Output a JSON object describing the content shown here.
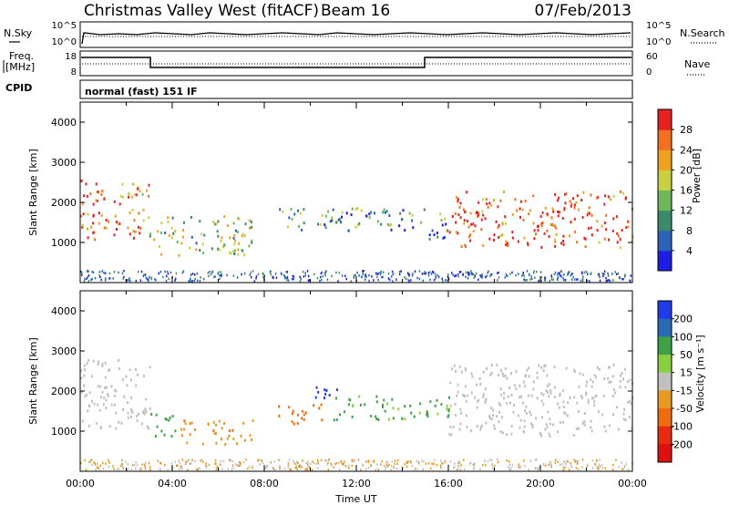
{
  "header": {
    "title": "Christmas Valley West (fitACF)",
    "beam": "Beam 16",
    "date": "07/Feb/2013"
  },
  "top_panels": {
    "nsky_label": "N.Sky",
    "nsky_ticks": [
      "10^5",
      "10^0"
    ],
    "nsearch_label": "N.Search",
    "nsearch_ticks": [
      "10^5",
      "10^0"
    ],
    "freq_label_1": "Freq.",
    "freq_label_2": "[MHz]",
    "freq_ticks": [
      "18",
      "8"
    ],
    "nave_label": "Nave",
    "nave_ticks": [
      "60",
      "0"
    ],
    "cpid_label": "CPID",
    "cpid_text": "normal (fast) 151 IF"
  },
  "chart_data": [
    {
      "type": "heatmap",
      "panel": "power",
      "xlabel": "",
      "ylabel": "Slant Range [km]",
      "y_ticks": [
        "1000",
        "2000",
        "3000",
        "4000"
      ],
      "ylim": [
        0,
        4500
      ],
      "xlim": [
        0,
        24
      ],
      "colorbar_label": "Power [dB]",
      "colorbar_ticks": [
        "4",
        "8",
        "12",
        "16",
        "20",
        "24",
        "28"
      ],
      "colorbar_colors": [
        "#1d1de6",
        "#2a62b8",
        "#3d8a6a",
        "#6db85a",
        "#c8d040",
        "#f0a020",
        "#f07020",
        "#e82020"
      ],
      "regions": [
        {
          "t0": 0.0,
          "t1": 2.6,
          "r0": 1100,
          "r1": 2600,
          "level": 0.85
        },
        {
          "t0": 2.6,
          "t1": 3.0,
          "r0": 1500,
          "r1": 2500,
          "level": 0.65
        },
        {
          "t0": 3.0,
          "t1": 7.5,
          "r0": 700,
          "r1": 1700,
          "level": 0.45
        },
        {
          "t0": 8.5,
          "t1": 15.0,
          "r0": 1300,
          "r1": 1900,
          "level": 0.35
        },
        {
          "t0": 15.0,
          "t1": 16.0,
          "r0": 1100,
          "r1": 1900,
          "level": 0.3
        },
        {
          "t0": 16.0,
          "t1": 24.0,
          "r0": 900,
          "r1": 2300,
          "level": 0.9
        }
      ]
    },
    {
      "type": "heatmap",
      "panel": "velocity",
      "xlabel": "Time UT",
      "ylabel": "Slant Range [km]",
      "y_ticks": [
        "1000",
        "2000",
        "3000",
        "4000"
      ],
      "ylim": [
        0,
        4500
      ],
      "xlim": [
        0,
        24
      ],
      "x_ticks": [
        "00:00",
        "04:00",
        "08:00",
        "12:00",
        "16:00",
        "20:00",
        "00:00"
      ],
      "colorbar_label": "Velocity [m s⁻¹]",
      "colorbar_ticks": [
        "200",
        "100",
        "50",
        "15",
        "-15",
        "-50",
        "-100",
        "-200"
      ],
      "colorbar_colors": [
        "#1e3ce8",
        "#2a6ab4",
        "#3fa048",
        "#88d040",
        "#c0c0c0",
        "#e89a20",
        "#f06a10",
        "#e82a10",
        "#e01010"
      ],
      "regions": [
        {
          "t0": 0.0,
          "t1": 3.0,
          "r0": 1100,
          "r1": 2800,
          "value": 0
        },
        {
          "t0": 3.0,
          "t1": 4.2,
          "r0": 900,
          "r1": 1500,
          "value": 40
        },
        {
          "t0": 4.2,
          "t1": 7.5,
          "r0": 700,
          "r1": 1300,
          "value": -40
        },
        {
          "t0": 8.5,
          "t1": 10.5,
          "r0": 1200,
          "r1": 1700,
          "value": -60
        },
        {
          "t0": 9.8,
          "t1": 11.2,
          "r0": 1850,
          "r1": 2200,
          "value": 200
        },
        {
          "t0": 11.0,
          "t1": 16.0,
          "r0": 1300,
          "r1": 1900,
          "value": 40
        },
        {
          "t0": 16.0,
          "t1": 24.0,
          "r0": 900,
          "r1": 2700,
          "value": 0
        }
      ]
    }
  ]
}
